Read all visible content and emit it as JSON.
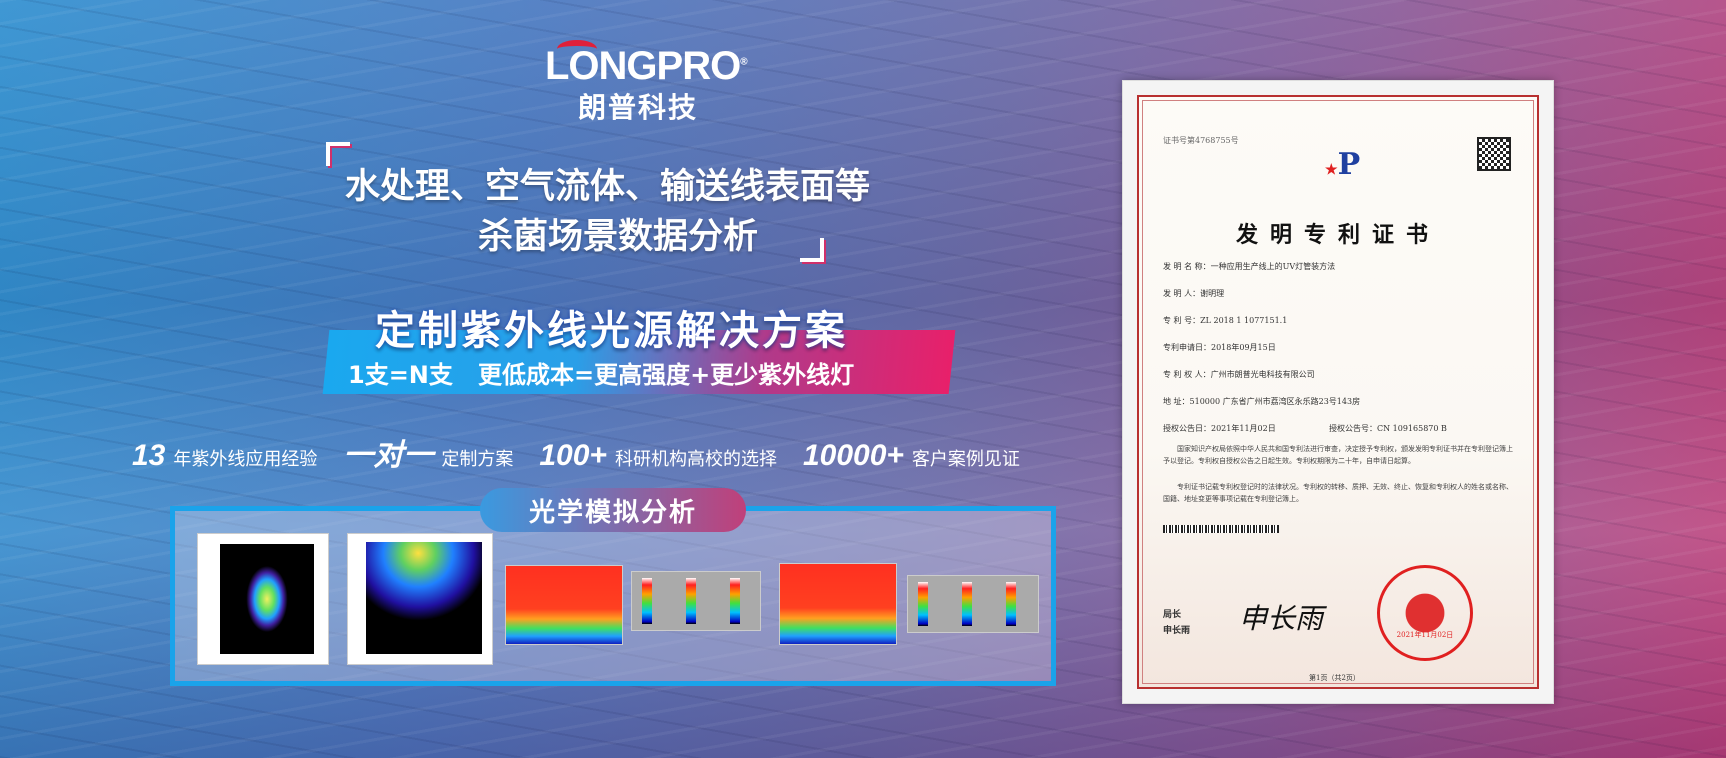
{
  "brand": {
    "logo_text": "LONGPRO",
    "registered": "®",
    "name_cn": "朗普科技",
    "accent": "#e0203a"
  },
  "headline": {
    "line1": "水处理、空气流体、输送线表面等",
    "line2": "杀菌场景数据分析"
  },
  "banner": {
    "title": "定制紫外线光源解决方案",
    "subtitle": "1支=N支   更低成本=更高强度+更少紫外线灯",
    "gradient": [
      "#1aa8ef",
      "#e8206a"
    ]
  },
  "stats": [
    {
      "number": "13",
      "label": "年紫外线应用经验"
    },
    {
      "number": "一对一",
      "label": "定制方案"
    },
    {
      "number": "100+",
      "label": "科研机构高校的选择"
    },
    {
      "number": "10000+",
      "label": "客户案例见证"
    }
  ],
  "simulation": {
    "title": "光学模拟分析",
    "border_color": "#1aa3ea"
  },
  "certificate": {
    "cert_no": "证书号第4768755号",
    "title": "发明专利证书",
    "fields": [
      "发 明 名 称：一种应用生产线上的UV灯管装方法",
      "发   明   人：谢明理",
      "专   利   号：ZL 2018 1 1077151.1",
      "专利申请日：2018年09月15日",
      "专 利 权 人：广州市朗普光电科技有限公司",
      "地        址：510000 广东省广州市荔湾区永乐路23号143房"
    ],
    "grant_date": "授权公告日：2021年11月02日",
    "grant_no": "授权公告号：CN 109165870 B",
    "para1": "国家知识产权局依照中华人民共和国专利法进行审查，决定授予专利权，颁发发明专利证书并在专利登记簿上予以登记。专利权自授权公告之日起生效。专利权期限为二十年，自申请日起算。",
    "para2": "专利证书记载专利权登记时的法律状况。专利权的转移、质押、无效、终止、恢复和专利权人的姓名或名称、国籍、地址变更等事项记载在专利登记簿上。",
    "signer_title": "局长",
    "signer_name": "申长雨",
    "signature": "申长雨",
    "seal_date": "2021年11月02日",
    "page": "第1页（共2页）"
  }
}
